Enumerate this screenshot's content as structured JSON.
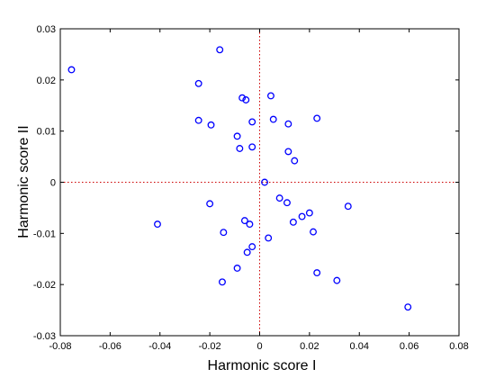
{
  "chart_data": {
    "type": "scatter",
    "xlabel": "Harmonic score I",
    "ylabel": "Harmonic score II",
    "xlim": [
      -0.08,
      0.08
    ],
    "ylim": [
      -0.03,
      0.03
    ],
    "xticks": [
      -0.08,
      -0.06,
      -0.04,
      -0.02,
      0,
      0.02,
      0.04,
      0.06,
      0.08
    ],
    "xtick_labels": [
      "-0.08",
      "-0.06",
      "-0.04",
      "-0.02",
      "0",
      "0.02",
      "0.04",
      "0.06",
      "0.08"
    ],
    "yticks": [
      -0.03,
      -0.02,
      -0.01,
      0,
      0.01,
      0.02,
      0.03
    ],
    "ytick_labels": [
      "-0.03",
      "-0.02",
      "-0.01",
      "0",
      "0.01",
      "0.02",
      "0.03"
    ],
    "grid": false,
    "reference_lines": {
      "x": 0,
      "y": 0,
      "style": "dotted",
      "color": "#cc0000"
    },
    "marker": {
      "shape": "circle-open",
      "color": "#0000ff"
    },
    "points": [
      {
        "x": -0.0755,
        "y": 0.022
      },
      {
        "x": -0.016,
        "y": 0.0259
      },
      {
        "x": -0.0245,
        "y": 0.0193
      },
      {
        "x": -0.007,
        "y": 0.0165
      },
      {
        "x": -0.0055,
        "y": 0.0161
      },
      {
        "x": 0.0045,
        "y": 0.0169
      },
      {
        "x": -0.0245,
        "y": 0.0121
      },
      {
        "x": -0.0195,
        "y": 0.0112
      },
      {
        "x": -0.003,
        "y": 0.0118
      },
      {
        "x": 0.0055,
        "y": 0.0123
      },
      {
        "x": 0.0115,
        "y": 0.0114
      },
      {
        "x": 0.023,
        "y": 0.0125
      },
      {
        "x": -0.009,
        "y": 0.009
      },
      {
        "x": -0.008,
        "y": 0.0066
      },
      {
        "x": -0.003,
        "y": 0.0069
      },
      {
        "x": 0.0115,
        "y": 0.006
      },
      {
        "x": 0.014,
        "y": 0.0042
      },
      {
        "x": 0.002,
        "y": 0.0
      },
      {
        "x": 0.008,
        "y": -0.0031
      },
      {
        "x": 0.011,
        "y": -0.004
      },
      {
        "x": -0.041,
        "y": -0.0082
      },
      {
        "x": -0.02,
        "y": -0.0042
      },
      {
        "x": -0.006,
        "y": -0.0075
      },
      {
        "x": -0.004,
        "y": -0.0082
      },
      {
        "x": 0.017,
        "y": -0.0067
      },
      {
        "x": 0.0135,
        "y": -0.0078
      },
      {
        "x": 0.02,
        "y": -0.006
      },
      {
        "x": 0.0355,
        "y": -0.0047
      },
      {
        "x": -0.0145,
        "y": -0.0098
      },
      {
        "x": 0.0215,
        "y": -0.0097
      },
      {
        "x": 0.0035,
        "y": -0.0109
      },
      {
        "x": -0.003,
        "y": -0.0126
      },
      {
        "x": -0.005,
        "y": -0.0137
      },
      {
        "x": -0.009,
        "y": -0.0168
      },
      {
        "x": -0.015,
        "y": -0.0195
      },
      {
        "x": 0.023,
        "y": -0.0177
      },
      {
        "x": 0.031,
        "y": -0.0192
      },
      {
        "x": 0.0595,
        "y": -0.0244
      }
    ]
  }
}
